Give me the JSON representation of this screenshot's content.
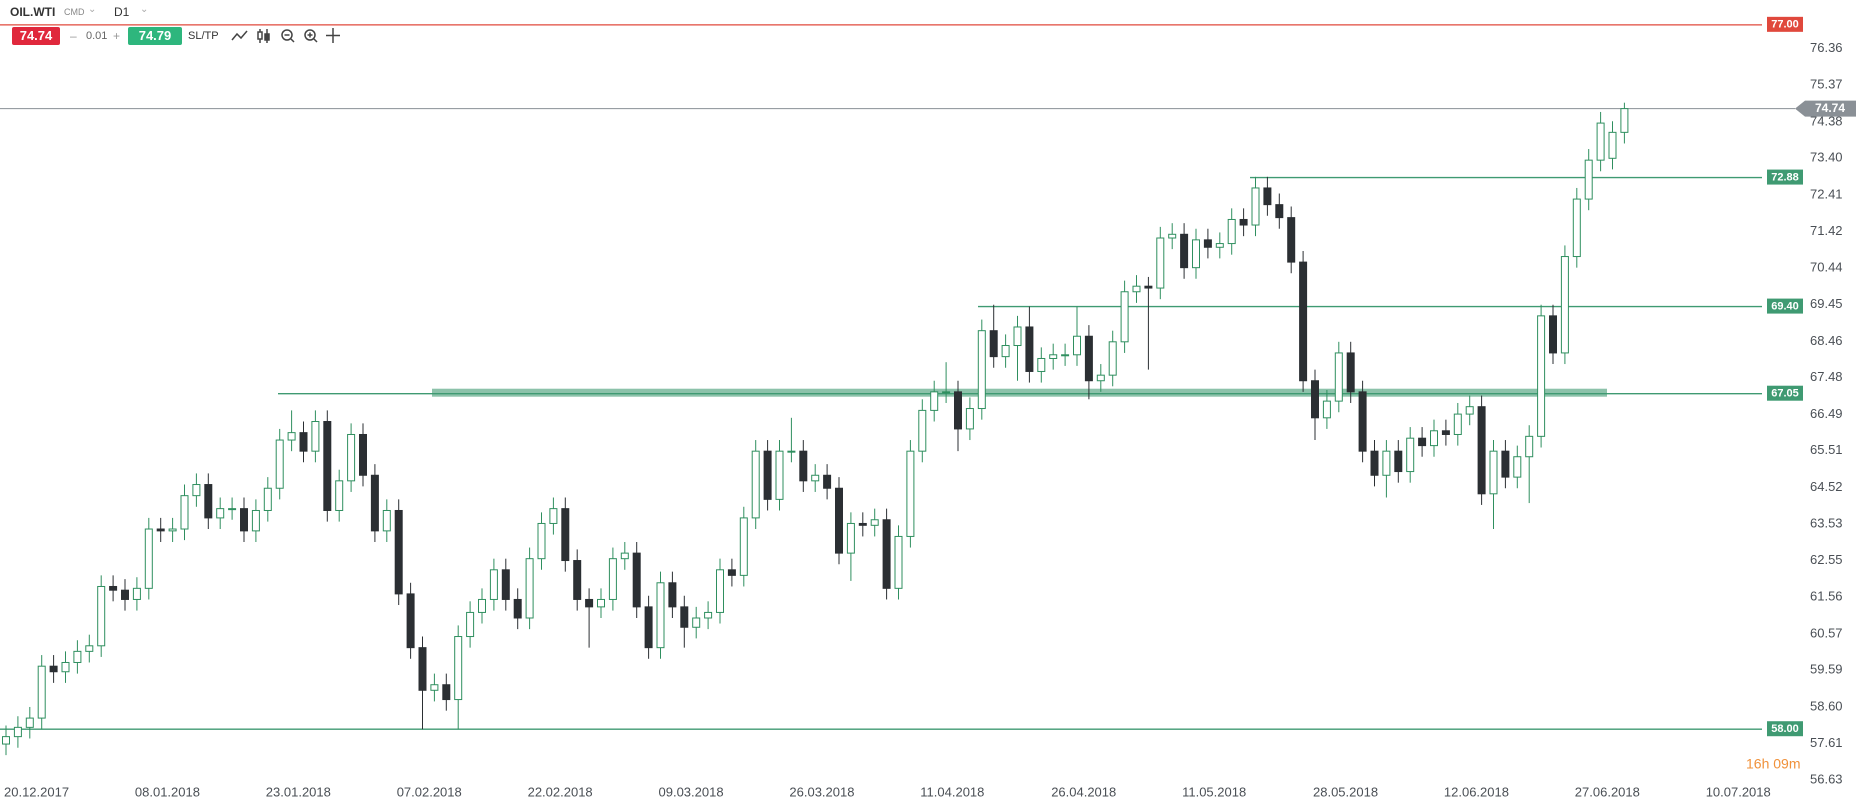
{
  "header": {
    "symbol": "OIL.WTI",
    "market": "CMD",
    "timeframe": "D1",
    "bid": "74.74",
    "volume": "0.01",
    "ask": "74.79",
    "sltp": "SL/TP"
  },
  "chart_data": {
    "type": "candlestick",
    "categories": [
      "20.12.2017",
      null,
      null,
      null,
      null,
      null,
      null,
      null,
      null,
      null,
      null,
      "08.01.2018",
      null,
      null,
      null,
      null,
      null,
      null,
      null,
      null,
      null,
      null,
      "23.01.2018",
      null,
      null,
      null,
      null,
      null,
      null,
      null,
      null,
      null,
      null,
      "07.02.2018",
      null,
      null,
      null,
      null,
      null,
      null,
      null,
      null,
      null,
      null,
      "22.02.2018",
      null,
      null,
      null,
      null,
      null,
      null,
      null,
      null,
      null,
      null,
      "09.03.2018",
      null,
      null,
      null,
      null,
      null,
      null,
      null,
      null,
      null,
      null,
      "26.03.2018",
      null,
      null,
      null,
      null,
      null,
      null,
      null,
      null,
      null,
      null,
      "11.04.2018",
      null,
      null,
      null,
      null,
      null,
      null,
      null,
      null,
      null,
      null,
      "26.04.2018",
      null,
      null,
      null,
      null,
      null,
      null,
      null,
      null,
      null,
      null,
      "11.05.2018",
      null,
      null,
      null,
      null,
      null,
      null,
      null,
      null,
      null,
      null,
      "28.05.2018",
      null,
      null,
      null,
      null,
      null,
      null,
      null,
      null,
      null,
      null,
      "12.06.2018",
      null,
      null,
      null,
      null,
      null,
      null,
      null,
      null,
      null,
      null,
      "27.06.2018",
      null,
      null,
      null,
      null,
      null,
      null,
      null,
      null,
      null,
      null,
      "10.07.2018"
    ],
    "values": [
      [
        57.6,
        58.1,
        57.3,
        57.8
      ],
      [
        57.8,
        58.35,
        57.5,
        58.05
      ],
      [
        58.05,
        58.6,
        57.75,
        58.3
      ],
      [
        58.3,
        60.0,
        58.0,
        59.7
      ],
      [
        59.7,
        60.0,
        59.25,
        59.55
      ],
      [
        59.55,
        60.1,
        59.25,
        59.8
      ],
      [
        59.8,
        60.4,
        59.5,
        60.1
      ],
      [
        60.1,
        60.55,
        59.8,
        60.25
      ],
      [
        60.25,
        62.15,
        59.95,
        61.85
      ],
      [
        61.85,
        62.15,
        61.45,
        61.75
      ],
      [
        61.75,
        62.05,
        61.2,
        61.5
      ],
      [
        61.5,
        62.1,
        61.2,
        61.8
      ],
      [
        61.8,
        63.7,
        61.5,
        63.4
      ],
      [
        63.4,
        63.7,
        63.05,
        63.35
      ],
      [
        63.35,
        63.7,
        63.05,
        63.4
      ],
      [
        63.4,
        64.6,
        63.1,
        64.3
      ],
      [
        64.3,
        64.9,
        64.0,
        64.6
      ],
      [
        64.6,
        64.9,
        63.4,
        63.7
      ],
      [
        63.7,
        64.25,
        63.4,
        63.95
      ],
      [
        63.95,
        64.25,
        63.65,
        63.95
      ],
      [
        63.95,
        64.25,
        63.05,
        63.35
      ],
      [
        63.35,
        64.2,
        63.05,
        63.9
      ],
      [
        63.9,
        64.8,
        63.6,
        64.5
      ],
      [
        64.5,
        66.1,
        64.2,
        65.8
      ],
      [
        65.8,
        66.6,
        65.5,
        66.0
      ],
      [
        66.0,
        66.3,
        65.2,
        65.5
      ],
      [
        65.5,
        66.6,
        65.2,
        66.3
      ],
      [
        66.3,
        66.6,
        63.6,
        63.9
      ],
      [
        63.9,
        65.0,
        63.6,
        64.7
      ],
      [
        64.7,
        66.25,
        64.4,
        65.95
      ],
      [
        65.95,
        66.25,
        64.55,
        64.85
      ],
      [
        64.85,
        65.15,
        63.05,
        63.35
      ],
      [
        63.35,
        64.2,
        63.05,
        63.9
      ],
      [
        63.9,
        64.2,
        61.35,
        61.65
      ],
      [
        61.65,
        61.95,
        59.9,
        60.2
      ],
      [
        60.2,
        60.5,
        58.0,
        59.05
      ],
      [
        59.05,
        59.5,
        58.75,
        59.2
      ],
      [
        59.2,
        59.5,
        58.5,
        58.8
      ],
      [
        58.8,
        60.8,
        58.0,
        60.5
      ],
      [
        60.5,
        61.45,
        60.2,
        61.15
      ],
      [
        61.15,
        61.8,
        60.85,
        61.5
      ],
      [
        61.5,
        62.6,
        61.2,
        62.3
      ],
      [
        62.3,
        62.6,
        61.2,
        61.5
      ],
      [
        61.5,
        61.8,
        60.7,
        61.0
      ],
      [
        61.0,
        62.9,
        60.7,
        62.6
      ],
      [
        62.6,
        63.85,
        62.3,
        63.55
      ],
      [
        63.55,
        64.25,
        63.25,
        63.95
      ],
      [
        63.95,
        64.25,
        62.25,
        62.55
      ],
      [
        62.55,
        62.85,
        61.2,
        61.5
      ],
      [
        61.5,
        61.8,
        60.2,
        61.3
      ],
      [
        61.3,
        61.8,
        61.0,
        61.5
      ],
      [
        61.5,
        62.9,
        61.2,
        62.6
      ],
      [
        62.6,
        63.05,
        62.3,
        62.75
      ],
      [
        62.75,
        63.05,
        61.0,
        61.3
      ],
      [
        61.3,
        61.6,
        59.9,
        60.2
      ],
      [
        60.2,
        62.25,
        59.9,
        61.95
      ],
      [
        61.95,
        62.25,
        61.0,
        61.3
      ],
      [
        61.3,
        61.6,
        60.2,
        60.75
      ],
      [
        60.75,
        61.3,
        60.45,
        61.0
      ],
      [
        61.0,
        61.45,
        60.7,
        61.15
      ],
      [
        61.15,
        62.6,
        60.85,
        62.3
      ],
      [
        62.3,
        62.6,
        61.85,
        62.15
      ],
      [
        62.15,
        64.0,
        61.85,
        63.7
      ],
      [
        63.7,
        65.8,
        63.4,
        65.5
      ],
      [
        65.5,
        65.8,
        63.9,
        64.2
      ],
      [
        64.2,
        65.8,
        63.9,
        65.5
      ],
      [
        65.5,
        66.4,
        65.2,
        65.5
      ],
      [
        65.5,
        65.8,
        64.4,
        64.7
      ],
      [
        64.7,
        65.15,
        64.4,
        64.85
      ],
      [
        64.85,
        65.15,
        64.2,
        64.5
      ],
      [
        64.5,
        64.8,
        62.45,
        62.75
      ],
      [
        62.75,
        63.85,
        62.0,
        63.55
      ],
      [
        63.55,
        63.85,
        63.2,
        63.5
      ],
      [
        63.5,
        63.95,
        63.2,
        63.65
      ],
      [
        63.65,
        63.95,
        61.5,
        61.8
      ],
      [
        61.8,
        63.5,
        61.5,
        63.2
      ],
      [
        63.2,
        65.8,
        62.9,
        65.5
      ],
      [
        65.5,
        66.9,
        65.2,
        66.6
      ],
      [
        66.6,
        67.4,
        66.3,
        67.1
      ],
      [
        67.1,
        67.9,
        66.8,
        67.1
      ],
      [
        67.1,
        67.4,
        65.5,
        66.1
      ],
      [
        66.1,
        66.95,
        65.8,
        66.65
      ],
      [
        66.65,
        69.05,
        66.35,
        68.75
      ],
      [
        68.75,
        69.45,
        67.75,
        68.05
      ],
      [
        68.05,
        68.65,
        67.75,
        68.35
      ],
      [
        68.35,
        69.15,
        67.4,
        68.85
      ],
      [
        68.85,
        69.4,
        67.35,
        67.65
      ],
      [
        67.65,
        68.3,
        67.35,
        68.0
      ],
      [
        68.0,
        68.4,
        67.7,
        68.1
      ],
      [
        68.1,
        68.4,
        67.8,
        68.1
      ],
      [
        68.1,
        69.4,
        67.8,
        68.6
      ],
      [
        68.6,
        68.9,
        66.9,
        67.4
      ],
      [
        67.4,
        67.85,
        67.1,
        67.55
      ],
      [
        67.55,
        68.75,
        67.25,
        68.45
      ],
      [
        68.45,
        70.1,
        68.15,
        69.8
      ],
      [
        69.8,
        70.25,
        69.5,
        69.95
      ],
      [
        69.95,
        70.2,
        67.7,
        69.9
      ],
      [
        69.9,
        71.55,
        69.6,
        71.25
      ],
      [
        71.25,
        71.65,
        70.95,
        71.35
      ],
      [
        71.35,
        71.65,
        70.15,
        70.45
      ],
      [
        70.45,
        71.5,
        70.15,
        71.2
      ],
      [
        71.2,
        71.5,
        70.7,
        71.0
      ],
      [
        71.0,
        71.4,
        70.7,
        71.1
      ],
      [
        71.1,
        72.05,
        70.8,
        71.75
      ],
      [
        71.75,
        72.05,
        71.3,
        71.6
      ],
      [
        71.6,
        72.9,
        71.3,
        72.6
      ],
      [
        72.6,
        72.9,
        71.85,
        72.15
      ],
      [
        72.15,
        72.45,
        71.5,
        71.8
      ],
      [
        71.8,
        72.1,
        70.3,
        70.6
      ],
      [
        70.6,
        70.9,
        67.1,
        67.4
      ],
      [
        67.4,
        67.7,
        65.8,
        66.4
      ],
      [
        66.4,
        67.15,
        66.1,
        66.85
      ],
      [
        66.85,
        68.45,
        66.55,
        68.15
      ],
      [
        68.15,
        68.45,
        66.8,
        67.1
      ],
      [
        67.1,
        67.4,
        65.2,
        65.5
      ],
      [
        65.5,
        65.8,
        64.55,
        64.85
      ],
      [
        64.85,
        65.8,
        64.25,
        65.5
      ],
      [
        65.5,
        65.8,
        64.65,
        64.95
      ],
      [
        64.95,
        66.15,
        64.65,
        65.85
      ],
      [
        65.85,
        66.15,
        65.35,
        65.65
      ],
      [
        65.65,
        66.35,
        65.35,
        66.05
      ],
      [
        66.05,
        66.35,
        65.65,
        65.95
      ],
      [
        65.95,
        66.8,
        65.65,
        66.5
      ],
      [
        66.5,
        67.0,
        66.2,
        66.7
      ],
      [
        66.7,
        67.0,
        64.05,
        64.35
      ],
      [
        64.35,
        65.8,
        63.4,
        65.5
      ],
      [
        65.5,
        65.8,
        64.5,
        64.8
      ],
      [
        64.8,
        65.65,
        64.5,
        65.35
      ],
      [
        65.35,
        66.2,
        64.1,
        65.9
      ],
      [
        65.9,
        69.45,
        65.6,
        69.15
      ],
      [
        69.15,
        69.45,
        67.85,
        68.15
      ],
      [
        68.15,
        71.05,
        67.85,
        70.75
      ],
      [
        70.75,
        72.6,
        70.45,
        72.3
      ],
      [
        72.3,
        73.65,
        72.0,
        73.35
      ],
      [
        73.35,
        74.65,
        73.05,
        74.35
      ],
      [
        73.4,
        74.4,
        73.1,
        74.1
      ],
      [
        74.1,
        74.9,
        73.8,
        74.74
      ],
      null,
      null,
      null,
      null,
      null,
      null,
      null
    ],
    "up_color": "#ffffff",
    "up_border": "#2f8f5f",
    "down_color": "#2b2f33",
    "ylim": [
      56.63,
      77.67
    ],
    "yticks": [
      56.63,
      57.61,
      {
        "value": 58.6,
        "label": "58.60"
      },
      59.59,
      60.57,
      61.56,
      62.55,
      63.53,
      64.52,
      65.51,
      66.49,
      67.48,
      68.46,
      69.45,
      70.44,
      71.42,
      72.41,
      {
        "value": 73.4,
        "label": "73.40"
      },
      74.38,
      75.37,
      76.36
    ],
    "levels": [
      {
        "value": 77,
        "label": "77.00",
        "color": "#e0483c"
      },
      {
        "value": 72.88,
        "color": "#3f9a72"
      },
      {
        "value": 69.4,
        "label": "69.40",
        "color": "#3f9a72"
      },
      {
        "value": 67.05,
        "color": "#3f9a72"
      },
      {
        "value": 58,
        "label": "58.00",
        "color": "#3f9a72"
      }
    ],
    "last_price": 74.74,
    "last_price_color": "#8a9096",
    "timer": "16h 09m"
  }
}
